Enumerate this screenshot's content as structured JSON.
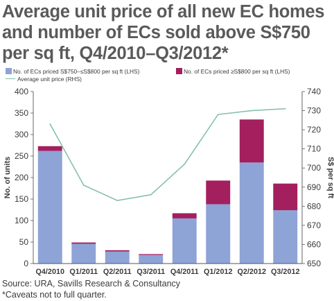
{
  "chart_data": {
    "type": "bar+line",
    "title": "Average unit price of all new EC homes and number of ECs sold above S$750 per sq ft, Q4/2010–Q3/2012*",
    "categories": [
      "Q4/2010",
      "Q1/2011",
      "Q2/2011",
      "Q3/2011",
      "Q4/2011",
      "Q1/2012",
      "Q2/2012",
      "Q3/2012"
    ],
    "series": [
      {
        "name": "No. of ECs priced S$750–≤S$800 per sq ft  (LHS)",
        "kind": "stacked-bar",
        "axis": "left",
        "color": "#8ea3d6",
        "values": [
          262,
          46,
          28,
          20,
          105,
          138,
          235,
          124
        ]
      },
      {
        "name": "No. of ECs priced  ≥S$800 per sq ft (LHS)",
        "kind": "stacked-bar",
        "axis": "left",
        "color": "#a31f5e",
        "values": [
          11,
          3,
          3,
          2,
          12,
          55,
          100,
          62
        ]
      },
      {
        "name": "Average unit price (RHS)",
        "kind": "line",
        "axis": "right",
        "color": "#7fbcae",
        "values": [
          723,
          691,
          683,
          686,
          702,
          728,
          730,
          731
        ]
      }
    ],
    "ylabel": "No. of units",
    "y2label": "S$ per sq ft",
    "ylim": [
      0,
      400
    ],
    "yticks": [
      "0",
      "50",
      "100",
      "150",
      "200",
      "250",
      "300",
      "350",
      "400"
    ],
    "y2lim": [
      650,
      740
    ],
    "y2ticks": [
      "650",
      "660",
      "670",
      "680",
      "690",
      "700",
      "710",
      "720",
      "730",
      "740"
    ],
    "legend": "top",
    "grid": false
  },
  "footer": {
    "source": "Source: URA, Savills Research & Consultancy",
    "caveat": "*Caveats not to full quarter."
  }
}
